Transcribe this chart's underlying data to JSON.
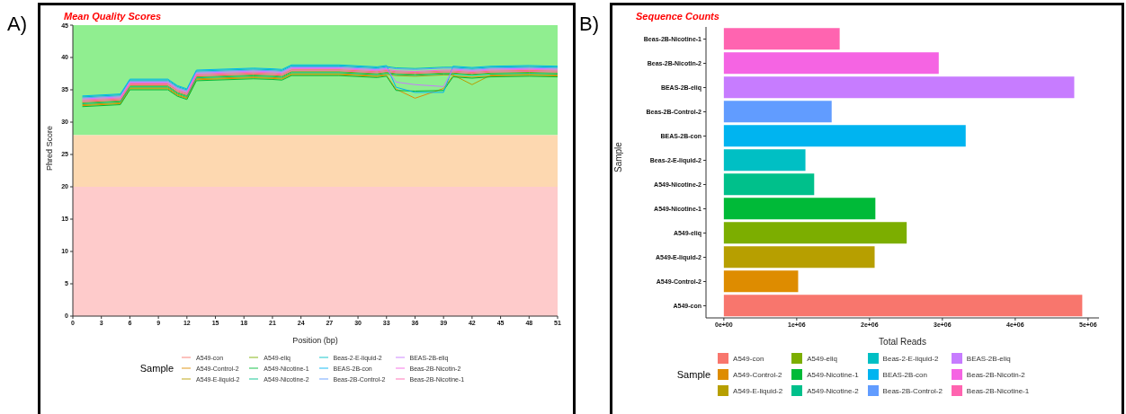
{
  "chart_data": [
    {
      "type": "line",
      "title": "Mean Quality Scores",
      "xlabel": "Position (bp)",
      "ylabel": "Phred Score",
      "legend_title": "Sample",
      "legend": "bottom",
      "annotations": [
        "A)"
      ],
      "marker": "none",
      "x": [
        1,
        5,
        6,
        10,
        11,
        12,
        13,
        19,
        21,
        22,
        23,
        28,
        32,
        33,
        34,
        36,
        39,
        40,
        42,
        44,
        48,
        51
      ],
      "xlim": [
        0,
        51
      ],
      "xticks": [
        0,
        3,
        6,
        9,
        12,
        15,
        18,
        21,
        24,
        27,
        30,
        33,
        36,
        39,
        42,
        45,
        48,
        51
      ],
      "ylim": [
        0,
        45
      ],
      "yticks": [
        0,
        5,
        10,
        15,
        20,
        25,
        30,
        35,
        40,
        45
      ],
      "bands": [
        {
          "axis": "y",
          "from": 28,
          "to": 45,
          "color": "#90ee90"
        },
        {
          "axis": "y",
          "from": 20,
          "to": 28,
          "color": "#fdd8b0"
        },
        {
          "axis": "y",
          "from": 0,
          "to": 20,
          "color": "#fecbcb"
        }
      ],
      "series": [
        {
          "name": "A549-con",
          "color": "#f8766d",
          "values": [
            33.3,
            33.6,
            35.9,
            35.9,
            34.9,
            34.4,
            37.3,
            37.6,
            37.5,
            37.4,
            38.1,
            38.1,
            37.8,
            38.0,
            37.8,
            37.7,
            37.9,
            37.9,
            37.7,
            37.9,
            38.0,
            37.9
          ]
        },
        {
          "name": "A549-Control-2",
          "color": "#de8c00",
          "values": [
            32.55,
            32.85,
            35.15,
            35.15,
            34.15,
            33.65,
            36.55,
            36.85,
            36.75,
            36.65,
            37.35,
            37.35,
            37.05,
            37.25,
            35.1,
            33.7,
            35.2,
            37.15,
            36.95,
            37.15,
            37.25,
            37.15
          ]
        },
        {
          "name": "A549-E-liquid-2",
          "color": "#b79f00",
          "values": [
            32.7,
            33.0,
            35.3,
            35.3,
            34.3,
            33.8,
            36.7,
            37.0,
            36.9,
            36.8,
            37.5,
            37.5,
            37.2,
            37.4,
            37.2,
            37.1,
            37.3,
            37.3,
            35.8,
            37.3,
            37.4,
            37.3
          ]
        },
        {
          "name": "A549-eliq",
          "color": "#7cae00",
          "values": [
            33.0,
            33.3,
            35.6,
            35.6,
            34.6,
            34.1,
            37.0,
            37.3,
            37.2,
            37.1,
            37.8,
            37.8,
            37.5,
            37.7,
            37.5,
            37.4,
            37.6,
            37.6,
            37.4,
            37.6,
            37.7,
            37.6
          ]
        },
        {
          "name": "A549-Nicotine-1",
          "color": "#00ba38",
          "values": [
            32.4,
            32.7,
            35.0,
            35.0,
            34.0,
            33.5,
            36.4,
            36.7,
            36.6,
            36.5,
            37.2,
            37.2,
            36.9,
            37.1,
            34.9,
            34.8,
            34.9,
            37.0,
            36.8,
            37.0,
            37.1,
            37.0
          ]
        },
        {
          "name": "A549-Nicotine-2",
          "color": "#00c08b",
          "values": [
            32.85,
            33.15,
            35.45,
            35.45,
            34.45,
            33.95,
            36.85,
            37.15,
            37.05,
            36.95,
            37.65,
            37.65,
            37.35,
            37.55,
            37.35,
            37.25,
            37.45,
            37.45,
            37.25,
            37.45,
            37.55,
            37.45
          ]
        },
        {
          "name": "Beas-2-E-liquid-2",
          "color": "#00bfc4",
          "values": [
            33.9,
            34.2,
            36.5,
            36.5,
            35.5,
            35.0,
            37.9,
            38.2,
            38.1,
            38.0,
            38.7,
            38.7,
            38.4,
            38.6,
            38.4,
            38.3,
            38.5,
            38.5,
            38.3,
            38.5,
            38.6,
            38.5
          ]
        },
        {
          "name": "BEAS-2B-con",
          "color": "#00b4f0",
          "values": [
            34.05,
            34.35,
            36.65,
            36.65,
            35.65,
            35.15,
            38.05,
            38.35,
            38.25,
            38.15,
            38.85,
            38.85,
            38.55,
            38.75,
            35.4,
            34.6,
            34.6,
            38.65,
            38.45,
            38.65,
            38.75,
            38.65
          ]
        },
        {
          "name": "Beas-2B-Control-2",
          "color": "#619cff",
          "values": [
            33.75,
            34.05,
            36.35,
            36.35,
            35.35,
            34.85,
            37.75,
            38.05,
            37.95,
            37.85,
            38.55,
            38.55,
            38.25,
            38.45,
            38.25,
            38.15,
            38.35,
            38.35,
            38.15,
            38.35,
            38.45,
            38.35
          ]
        },
        {
          "name": "BEAS-2B-eliq",
          "color": "#c77cff",
          "values": [
            33.6,
            33.9,
            36.2,
            36.2,
            35.2,
            34.7,
            37.6,
            37.9,
            37.8,
            37.7,
            38.4,
            38.4,
            38.1,
            38.3,
            36.2,
            35.8,
            35.5,
            38.2,
            38.0,
            38.2,
            38.3,
            38.2
          ]
        },
        {
          "name": "Beas-2B-Nicotin-2",
          "color": "#f564e3",
          "values": [
            33.45,
            33.75,
            36.05,
            36.05,
            35.05,
            34.55,
            37.45,
            37.75,
            37.65,
            37.55,
            38.25,
            38.25,
            37.95,
            38.15,
            37.95,
            37.85,
            38.05,
            38.05,
            37.85,
            38.05,
            38.15,
            38.05
          ]
        },
        {
          "name": "Beas-2B-Nicotine-1",
          "color": "#ff64b0",
          "values": [
            33.15,
            33.45,
            35.75,
            35.75,
            34.75,
            34.25,
            37.15,
            37.45,
            37.35,
            37.25,
            37.95,
            37.95,
            37.65,
            37.85,
            37.65,
            37.55,
            37.75,
            37.75,
            37.55,
            37.75,
            37.85,
            37.75
          ]
        }
      ]
    },
    {
      "type": "bar",
      "orientation": "horizontal",
      "title": "Sequence Counts",
      "xlabel": "Total Reads",
      "ylabel": "Sample",
      "legend_title": "Sample",
      "legend": "bottom",
      "annotations": [
        "B)"
      ],
      "categories": [
        "Beas-2B-Nicotine-1",
        "Beas-2B-Nicotin-2",
        "BEAS-2B-eliq",
        "Beas-2B-Control-2",
        "BEAS-2B-con",
        "Beas-2-E-liquid-2",
        "A549-Nicotine-2",
        "A549-Nicotine-1",
        "A549-eliq",
        "A549-E-liquid-2",
        "A549-Control-2",
        "A549-con"
      ],
      "series": [
        {
          "name": "A549-con",
          "color": "#f8766d",
          "values": [
            null,
            null,
            null,
            null,
            null,
            null,
            null,
            null,
            null,
            null,
            null,
            4920000
          ]
        },
        {
          "name": "A549-Control-2",
          "color": "#de8c00",
          "values": [
            null,
            null,
            null,
            null,
            null,
            null,
            null,
            null,
            null,
            null,
            1020000,
            null
          ]
        },
        {
          "name": "A549-E-liquid-2",
          "color": "#b79f00",
          "values": [
            null,
            null,
            null,
            null,
            null,
            null,
            null,
            null,
            null,
            2070000,
            null,
            null
          ]
        },
        {
          "name": "A549-eliq",
          "color": "#7cae00",
          "values": [
            null,
            null,
            null,
            null,
            null,
            null,
            null,
            null,
            2510000,
            null,
            null,
            null
          ]
        },
        {
          "name": "A549-Nicotine-1",
          "color": "#00ba38",
          "values": [
            null,
            null,
            null,
            null,
            null,
            null,
            null,
            2080000,
            null,
            null,
            null,
            null
          ]
        },
        {
          "name": "A549-Nicotine-2",
          "color": "#00c08b",
          "values": [
            null,
            null,
            null,
            null,
            null,
            null,
            1240000,
            null,
            null,
            null,
            null,
            null
          ]
        },
        {
          "name": "Beas-2-E-liquid-2",
          "color": "#00bfc4",
          "values": [
            null,
            null,
            null,
            null,
            null,
            1120000,
            null,
            null,
            null,
            null,
            null,
            null
          ]
        },
        {
          "name": "BEAS-2B-con",
          "color": "#00b4f0",
          "values": [
            null,
            null,
            null,
            null,
            3320000,
            null,
            null,
            null,
            null,
            null,
            null,
            null
          ]
        },
        {
          "name": "Beas-2B-Control-2",
          "color": "#619cff",
          "values": [
            null,
            null,
            null,
            1480000,
            null,
            null,
            null,
            null,
            null,
            null,
            null,
            null
          ]
        },
        {
          "name": "BEAS-2B-eliq",
          "color": "#c77cff",
          "values": [
            null,
            null,
            4810000,
            null,
            null,
            null,
            null,
            null,
            null,
            null,
            null,
            null
          ]
        },
        {
          "name": "Beas-2B-Nicotin-2",
          "color": "#f564e3",
          "values": [
            null,
            2950000,
            null,
            null,
            null,
            null,
            null,
            null,
            null,
            null,
            null,
            null
          ]
        },
        {
          "name": "Beas-2B-Nicotine-1",
          "color": "#ff64b0",
          "values": [
            1590000,
            null,
            null,
            null,
            null,
            null,
            null,
            null,
            null,
            null,
            null,
            null
          ]
        }
      ],
      "xlim": [
        -245000,
        5150000
      ],
      "xticks": [
        {
          "value": 0,
          "label": "0e+00"
        },
        {
          "value": 1000000,
          "label": "1e+06"
        },
        {
          "value": 2000000,
          "label": "2e+06"
        },
        {
          "value": 3000000,
          "label": "3e+06"
        },
        {
          "value": 4000000,
          "label": "4e+06"
        },
        {
          "value": 5000000,
          "label": "5e+06"
        }
      ]
    }
  ]
}
